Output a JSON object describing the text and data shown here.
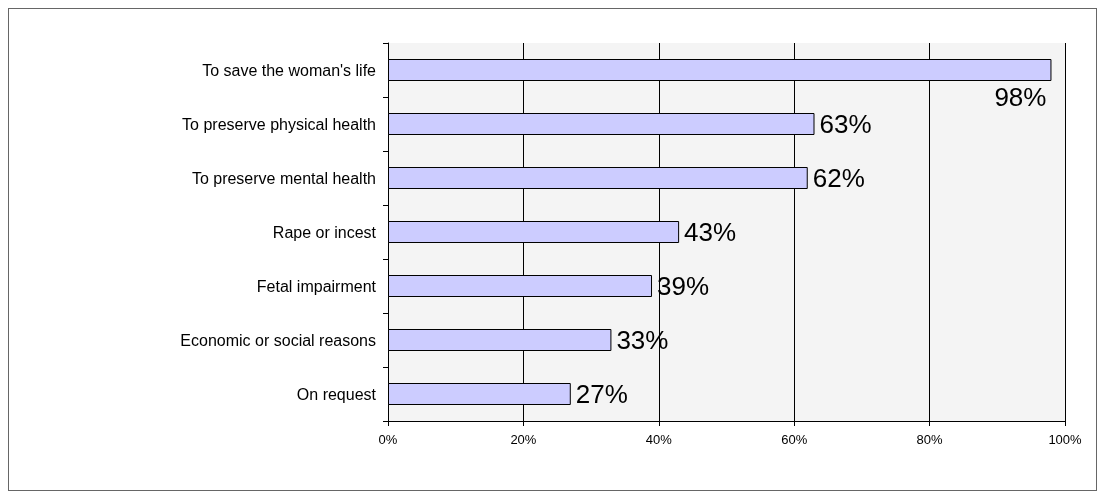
{
  "chart_data": {
    "type": "bar",
    "orientation": "horizontal",
    "categories": [
      "To save the woman's life",
      "To preserve physical health",
      "To preserve mental health",
      "Rape or incest",
      "Fetal impairment",
      "Economic or social reasons",
      "On request"
    ],
    "values": [
      98,
      63,
      62,
      43,
      39,
      33,
      27
    ],
    "color": "#ccccff",
    "value_labels": [
      "98%",
      "63%",
      "62%",
      "43%",
      "39%",
      "33%",
      "27%"
    ],
    "xlim": [
      0,
      100
    ],
    "xticks": [
      {
        "value": 0,
        "label": "0%"
      },
      {
        "value": 20,
        "label": "20%"
      },
      {
        "value": 40,
        "label": "40%"
      },
      {
        "value": 60,
        "label": "60%"
      },
      {
        "value": 80,
        "label": "80%"
      },
      {
        "value": 100,
        "label": "100%"
      }
    ],
    "grid": "x"
  }
}
